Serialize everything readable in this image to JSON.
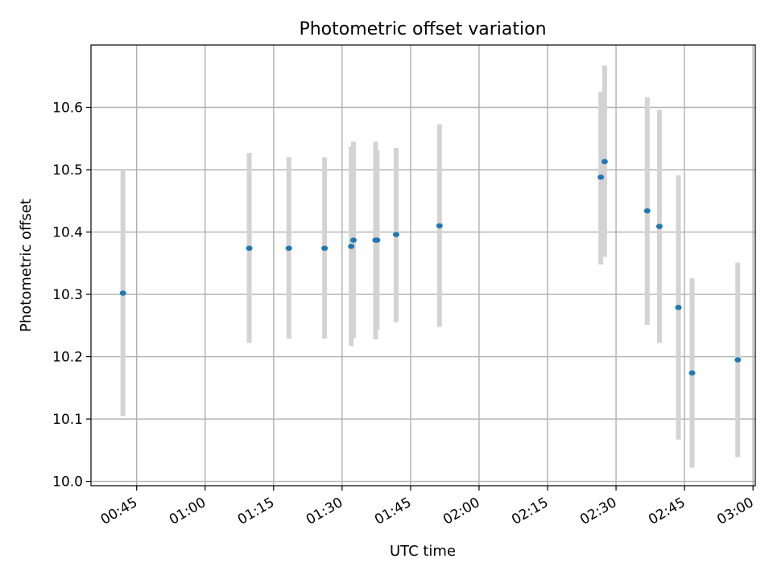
{
  "chart_data": {
    "type": "scatter",
    "title": "Photometric offset variation",
    "xlabel": "UTC time",
    "ylabel": "Photometric offset",
    "x_ticks": [
      "00:45",
      "01:00",
      "01:15",
      "01:30",
      "01:45",
      "02:00",
      "02:15",
      "02:30",
      "02:45",
      "03:00"
    ],
    "y_ticks": [
      "10.0",
      "10.1",
      "10.2",
      "10.3",
      "10.4",
      "10.5",
      "10.6"
    ],
    "xlim": [
      "00:35:00",
      "03:00:30"
    ],
    "ylim": [
      9.993,
      10.7
    ],
    "grid": true,
    "colors": {
      "points": "#1f77b4",
      "errorbars": "#d3d3d3",
      "grid": "#b0b0b0"
    },
    "points": [
      {
        "time": "00:42:00",
        "y": 10.302,
        "y_low": 10.105,
        "y_high": 10.5
      },
      {
        "time": "01:09:40",
        "y": 10.374,
        "y_low": 10.222,
        "y_high": 10.527
      },
      {
        "time": "01:18:20",
        "y": 10.374,
        "y_low": 10.229,
        "y_high": 10.52
      },
      {
        "time": "01:26:10",
        "y": 10.374,
        "y_low": 10.229,
        "y_high": 10.52
      },
      {
        "time": "01:32:00",
        "y": 10.377,
        "y_low": 10.217,
        "y_high": 10.537
      },
      {
        "time": "01:32:30",
        "y": 10.387,
        "y_low": 10.23,
        "y_high": 10.545
      },
      {
        "time": "01:37:20",
        "y": 10.387,
        "y_low": 10.228,
        "y_high": 10.545
      },
      {
        "time": "01:37:40",
        "y": 10.387,
        "y_low": 10.243,
        "y_high": 10.531
      },
      {
        "time": "01:41:50",
        "y": 10.396,
        "y_low": 10.255,
        "y_high": 10.535
      },
      {
        "time": "01:51:20",
        "y": 10.41,
        "y_low": 10.248,
        "y_high": 10.573
      },
      {
        "time": "02:26:40",
        "y": 10.488,
        "y_low": 10.348,
        "y_high": 10.625
      },
      {
        "time": "02:27:30",
        "y": 10.513,
        "y_low": 10.36,
        "y_high": 10.667
      },
      {
        "time": "02:36:50",
        "y": 10.434,
        "y_low": 10.251,
        "y_high": 10.616
      },
      {
        "time": "02:39:30",
        "y": 10.409,
        "y_low": 10.222,
        "y_high": 10.596
      },
      {
        "time": "02:43:40",
        "y": 10.279,
        "y_low": 10.067,
        "y_high": 10.491
      },
      {
        "time": "02:46:40",
        "y": 10.174,
        "y_low": 10.022,
        "y_high": 10.326
      },
      {
        "time": "02:56:40",
        "y": 10.195,
        "y_low": 10.039,
        "y_high": 10.351
      }
    ]
  }
}
